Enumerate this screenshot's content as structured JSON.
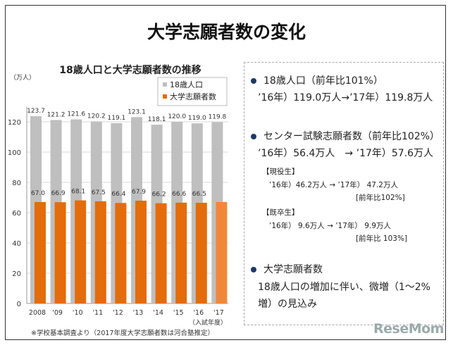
{
  "title": "大学志願者数の変化",
  "chart_data": {
    "type": "bar",
    "title": "18歳人口と大学志願者数の推移",
    "ylabel": "（万人）",
    "xlabel": "（入試年度）",
    "categories": [
      "2008",
      "'09",
      "'10",
      "'11",
      "'12",
      "'13",
      "'14",
      "'15",
      "'16",
      "'17"
    ],
    "series": [
      {
        "name": "18歳人口",
        "color": "#bfbfbf",
        "values": [
          123.7,
          121.2,
          121.6,
          120.2,
          119.1,
          123.1,
          118.1,
          120.0,
          119.0,
          119.8
        ],
        "labels": [
          "123.7",
          "121.2",
          "121.6",
          "120.2",
          "119.1",
          "123.1",
          "118.1",
          "120.0",
          "119.0",
          "119.8"
        ]
      },
      {
        "name": "大学志願者数",
        "color": "#e46c0a",
        "last_color": "#f0883a",
        "values": [
          67.0,
          66.9,
          68.1,
          67.5,
          66.4,
          67.9,
          66.2,
          66.6,
          66.5,
          67.0
        ],
        "labels": [
          "67.0",
          "66.9",
          "68.1",
          "67.5",
          "66.4",
          "67.9",
          "66.2",
          "66.6",
          "66.5",
          ""
        ]
      }
    ],
    "ylim": [
      0,
      130
    ],
    "yticks": [
      "0",
      "20",
      "40",
      "60",
      "80",
      "100",
      "120"
    ],
    "grid": true,
    "legend": "top-right",
    "note": "※学校基本調査より（2017年度大学志願者数は河合塾推定）"
  },
  "panel": {
    "item1": {
      "head": "18歳人口（前年比101%）",
      "line": "’16年）119.0万人→’17年）119.8万人"
    },
    "item2": {
      "head": "センター試験志願者数（前年比102%）",
      "line": "’16年）56.4万人　→ ’17年）57.6万人",
      "sub1": {
        "label": "【現役生】",
        "line": "’16年）46.2万人 → ’17年） 47.2万人",
        "ratio": "[前年比102%]"
      },
      "sub2": {
        "label": "【既卒生】",
        "line": "’16年） 9.6万人 → ’17年） 9.9万人",
        "ratio": "[前年比 103%]"
      }
    },
    "item3": {
      "head": "大学志願者数",
      "line1": "18歳人口の増加に伴い、微増（1～2%",
      "line2": "増）の見込み"
    }
  },
  "logo": "ReseMom"
}
